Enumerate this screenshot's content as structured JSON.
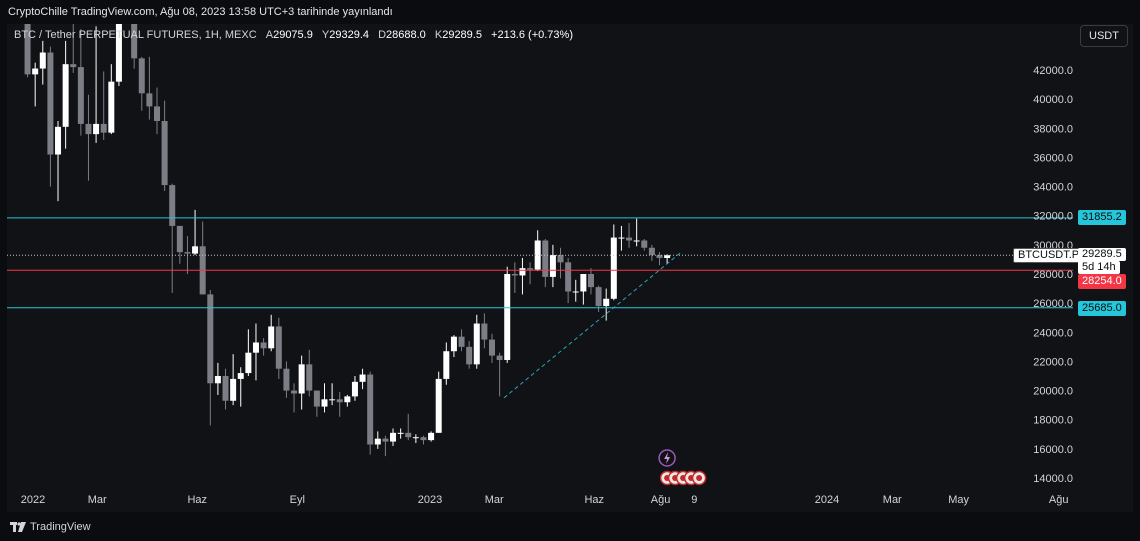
{
  "header": {
    "published": "CryptoChille TradingView.com, Ağu 08, 2023 13:58 UTC+3 tarihinde yayınlandı"
  },
  "legend": {
    "symbol": "BTC / Tether PERPETUAL FUTURES, 1H, MEXC",
    "open_label": "A",
    "open": "29075.9",
    "high_label": "Y",
    "high": "29329.4",
    "low_label": "D",
    "low": "28688.0",
    "close_label": "K",
    "close": "29289.5",
    "change": "+213.6 (+0.73%)"
  },
  "currency_button": "USDT",
  "footer": {
    "brand": "TradingView"
  },
  "price_tags": {
    "resistance": "31855.2",
    "symbol_label": "BTCUSDT.P",
    "current": "29289.5",
    "countdown": "5d 14h",
    "red_level": "28254.0",
    "support": "25685.0"
  },
  "colors": {
    "background": "#0b0c10",
    "panel": "#111216",
    "up_candle": "#ffffff",
    "down_candle": "#7c7e85",
    "cyan_line": "#26c6da",
    "red_line": "#f23645",
    "trend_line": "#2aa3b8"
  },
  "chart_data": {
    "type": "candlestick",
    "interval": "weekly (displayed)",
    "ylim": [
      13000,
      44000
    ],
    "y_ticks": [
      "42000.0",
      "40000.0",
      "38000.0",
      "36000.0",
      "34000.0",
      "32000.0",
      "30000.0",
      "28000.0",
      "26000.0",
      "24000.0",
      "22000.0",
      "20000.0",
      "18000.0",
      "16000.0",
      "14000.0"
    ],
    "x_labels": [
      "2022",
      "Mar",
      "Haz",
      "Eyl",
      "2023",
      "Mar",
      "Haz",
      "Ağu",
      "9",
      "2024",
      "Mar",
      "May",
      "Ağu"
    ],
    "grid": false,
    "horizontal_levels": [
      {
        "name": "resistance",
        "value": 31855.2
      },
      {
        "name": "red_level",
        "value": 28254.0
      },
      {
        "name": "support",
        "value": 25685.0
      },
      {
        "name": "current_price",
        "value": 29289.5
      }
    ],
    "trendline": {
      "from": {
        "date": "2023-03-10",
        "price": 19500
      },
      "to": {
        "date": "2023-08-20",
        "price": 29500
      }
    },
    "candles": [
      {
        "d": "2021-12-27",
        "o": 47500,
        "h": 48500,
        "l": 41500,
        "c": 41700
      },
      {
        "d": "2022-01-03",
        "o": 41700,
        "h": 42500,
        "l": 39500,
        "c": 42100
      },
      {
        "d": "2022-01-10",
        "o": 42100,
        "h": 44000,
        "l": 41000,
        "c": 43200
      },
      {
        "d": "2022-01-17",
        "o": 43200,
        "h": 43600,
        "l": 34000,
        "c": 36200
      },
      {
        "d": "2022-01-24",
        "o": 36200,
        "h": 38500,
        "l": 33000,
        "c": 38100
      },
      {
        "d": "2022-01-31",
        "o": 38100,
        "h": 44000,
        "l": 36600,
        "c": 42400
      },
      {
        "d": "2022-02-07",
        "o": 42400,
        "h": 45800,
        "l": 41800,
        "c": 42200
      },
      {
        "d": "2022-02-14",
        "o": 42200,
        "h": 44800,
        "l": 37500,
        "c": 38300
      },
      {
        "d": "2022-02-21",
        "o": 38300,
        "h": 40300,
        "l": 34400,
        "c": 37600
      },
      {
        "d": "2022-02-28",
        "o": 37600,
        "h": 45000,
        "l": 37000,
        "c": 38300
      },
      {
        "d": "2022-03-07",
        "o": 38300,
        "h": 41900,
        "l": 37200,
        "c": 37700
      },
      {
        "d": "2022-03-14",
        "o": 37700,
        "h": 42400,
        "l": 37600,
        "c": 41200
      },
      {
        "d": "2022-03-21",
        "o": 41200,
        "h": 48000,
        "l": 40900,
        "c": 46800
      },
      {
        "d": "2022-03-28",
        "o": 46800,
        "h": 48200,
        "l": 45200,
        "c": 46400
      },
      {
        "d": "2022-04-04",
        "o": 46400,
        "h": 47500,
        "l": 42100,
        "c": 42800
      },
      {
        "d": "2022-04-11",
        "o": 42800,
        "h": 42900,
        "l": 39200,
        "c": 40400
      },
      {
        "d": "2022-04-18",
        "o": 40400,
        "h": 42900,
        "l": 38600,
        "c": 39500
      },
      {
        "d": "2022-04-25",
        "o": 39500,
        "h": 40800,
        "l": 37600,
        "c": 38500
      },
      {
        "d": "2022-05-02",
        "o": 38500,
        "h": 39900,
        "l": 33700,
        "c": 34100
      },
      {
        "d": "2022-05-09",
        "o": 34100,
        "h": 34200,
        "l": 26700,
        "c": 31300
      },
      {
        "d": "2022-05-16",
        "o": 31300,
        "h": 31300,
        "l": 28700,
        "c": 29500
      },
      {
        "d": "2022-05-23",
        "o": 29500,
        "h": 30600,
        "l": 28000,
        "c": 29400
      },
      {
        "d": "2022-05-30",
        "o": 29400,
        "h": 32400,
        "l": 29300,
        "c": 29900
      },
      {
        "d": "2022-06-06",
        "o": 29900,
        "h": 31600,
        "l": 26600,
        "c": 26600
      },
      {
        "d": "2022-06-13",
        "o": 26600,
        "h": 26900,
        "l": 17600,
        "c": 20500
      },
      {
        "d": "2022-06-20",
        "o": 20500,
        "h": 21900,
        "l": 19700,
        "c": 21000
      },
      {
        "d": "2022-06-27",
        "o": 21000,
        "h": 21500,
        "l": 18700,
        "c": 19300
      },
      {
        "d": "2022-07-04",
        "o": 19300,
        "h": 22500,
        "l": 19000,
        "c": 20800
      },
      {
        "d": "2022-07-11",
        "o": 20800,
        "h": 21600,
        "l": 18900,
        "c": 21200
      },
      {
        "d": "2022-07-18",
        "o": 21200,
        "h": 24200,
        "l": 21000,
        "c": 22600
      },
      {
        "d": "2022-07-25",
        "o": 22600,
        "h": 24600,
        "l": 20700,
        "c": 23300
      },
      {
        "d": "2022-08-01",
        "o": 23300,
        "h": 23600,
        "l": 22400,
        "c": 22900
      },
      {
        "d": "2022-08-08",
        "o": 22900,
        "h": 25200,
        "l": 22700,
        "c": 24400
      },
      {
        "d": "2022-08-15",
        "o": 24400,
        "h": 25000,
        "l": 20800,
        "c": 21500
      },
      {
        "d": "2022-08-22",
        "o": 21500,
        "h": 22000,
        "l": 19500,
        "c": 20000
      },
      {
        "d": "2022-08-29",
        "o": 20000,
        "h": 20500,
        "l": 18500,
        "c": 19800
      },
      {
        "d": "2022-09-05",
        "o": 19800,
        "h": 22400,
        "l": 18700,
        "c": 21800
      },
      {
        "d": "2022-09-12",
        "o": 21800,
        "h": 22800,
        "l": 19600,
        "c": 20000
      },
      {
        "d": "2022-09-19",
        "o": 20000,
        "h": 20000,
        "l": 18200,
        "c": 18900
      },
      {
        "d": "2022-09-26",
        "o": 18900,
        "h": 20500,
        "l": 18500,
        "c": 19400
      },
      {
        "d": "2022-10-03",
        "o": 19400,
        "h": 20500,
        "l": 19000,
        "c": 19400
      },
      {
        "d": "2022-10-10",
        "o": 19400,
        "h": 19900,
        "l": 18200,
        "c": 19200
      },
      {
        "d": "2022-10-17",
        "o": 19200,
        "h": 19700,
        "l": 18900,
        "c": 19600
      },
      {
        "d": "2022-10-24",
        "o": 19600,
        "h": 21000,
        "l": 19300,
        "c": 20600
      },
      {
        "d": "2022-10-31",
        "o": 20600,
        "h": 21500,
        "l": 20100,
        "c": 21100
      },
      {
        "d": "2022-11-07",
        "o": 21100,
        "h": 21300,
        "l": 15600,
        "c": 16300
      },
      {
        "d": "2022-11-14",
        "o": 16300,
        "h": 17200,
        "l": 16000,
        "c": 16700
      },
      {
        "d": "2022-11-21",
        "o": 16700,
        "h": 16900,
        "l": 15500,
        "c": 16500
      },
      {
        "d": "2022-11-28",
        "o": 16500,
        "h": 17400,
        "l": 16200,
        "c": 17100
      },
      {
        "d": "2022-12-05",
        "o": 17100,
        "h": 17400,
        "l": 16700,
        "c": 17100
      },
      {
        "d": "2022-12-12",
        "o": 17100,
        "h": 18400,
        "l": 16600,
        "c": 16800
      },
      {
        "d": "2022-12-19",
        "o": 16800,
        "h": 17000,
        "l": 16400,
        "c": 16800
      },
      {
        "d": "2022-12-26",
        "o": 16800,
        "h": 16900,
        "l": 16300,
        "c": 16600
      },
      {
        "d": "2023-01-02",
        "o": 16600,
        "h": 17200,
        "l": 16500,
        "c": 17100
      },
      {
        "d": "2023-01-09",
        "o": 17100,
        "h": 21300,
        "l": 17100,
        "c": 20800
      },
      {
        "d": "2023-01-16",
        "o": 20800,
        "h": 23300,
        "l": 20400,
        "c": 22700
      },
      {
        "d": "2023-01-23",
        "o": 22700,
        "h": 23800,
        "l": 22300,
        "c": 23700
      },
      {
        "d": "2023-01-30",
        "o": 23700,
        "h": 24200,
        "l": 22700,
        "c": 23000
      },
      {
        "d": "2023-02-06",
        "o": 23000,
        "h": 23400,
        "l": 21500,
        "c": 21800
      },
      {
        "d": "2023-02-13",
        "o": 21800,
        "h": 25200,
        "l": 21500,
        "c": 24600
      },
      {
        "d": "2023-02-20",
        "o": 24600,
        "h": 25300,
        "l": 22900,
        "c": 23500
      },
      {
        "d": "2023-02-27",
        "o": 23500,
        "h": 23900,
        "l": 21900,
        "c": 22400
      },
      {
        "d": "2023-03-06",
        "o": 22400,
        "h": 22600,
        "l": 19600,
        "c": 22100
      },
      {
        "d": "2023-03-13",
        "o": 22100,
        "h": 28500,
        "l": 21900,
        "c": 28000
      },
      {
        "d": "2023-03-20",
        "o": 28000,
        "h": 28800,
        "l": 26700,
        "c": 27900
      },
      {
        "d": "2023-03-27",
        "o": 27900,
        "h": 29100,
        "l": 26600,
        "c": 28400
      },
      {
        "d": "2023-04-03",
        "o": 28400,
        "h": 28800,
        "l": 27300,
        "c": 28300
      },
      {
        "d": "2023-04-10",
        "o": 28300,
        "h": 31000,
        "l": 28200,
        "c": 30300
      },
      {
        "d": "2023-04-17",
        "o": 30300,
        "h": 30400,
        "l": 27100,
        "c": 27800
      },
      {
        "d": "2023-04-24",
        "o": 27800,
        "h": 30000,
        "l": 27100,
        "c": 29300
      },
      {
        "d": "2023-05-01",
        "o": 29300,
        "h": 29800,
        "l": 27700,
        "c": 28800
      },
      {
        "d": "2023-05-08",
        "o": 28800,
        "h": 29100,
        "l": 26000,
        "c": 26800
      },
      {
        "d": "2023-05-15",
        "o": 26800,
        "h": 27600,
        "l": 26100,
        "c": 26800
      },
      {
        "d": "2023-05-22",
        "o": 26800,
        "h": 28000,
        "l": 25900,
        "c": 28000
      },
      {
        "d": "2023-05-29",
        "o": 28000,
        "h": 28400,
        "l": 26600,
        "c": 27100
      },
      {
        "d": "2023-06-05",
        "o": 27100,
        "h": 27200,
        "l": 25400,
        "c": 25800
      },
      {
        "d": "2023-06-12",
        "o": 25800,
        "h": 27000,
        "l": 24800,
        "c": 26300
      },
      {
        "d": "2023-06-19",
        "o": 26300,
        "h": 31400,
        "l": 26200,
        "c": 30500
      },
      {
        "d": "2023-06-26",
        "o": 30500,
        "h": 31300,
        "l": 29600,
        "c": 30500
      },
      {
        "d": "2023-07-03",
        "o": 30500,
        "h": 31500,
        "l": 29800,
        "c": 30300
      },
      {
        "d": "2023-07-10",
        "o": 30300,
        "h": 31800,
        "l": 29900,
        "c": 30300
      },
      {
        "d": "2023-07-17",
        "o": 30300,
        "h": 30400,
        "l": 29600,
        "c": 29800
      },
      {
        "d": "2023-07-24",
        "o": 29800,
        "h": 30000,
        "l": 28900,
        "c": 29300
      },
      {
        "d": "2023-07-31",
        "o": 29300,
        "h": 29500,
        "l": 28600,
        "c": 29100
      },
      {
        "d": "2023-08-07",
        "o": 29100,
        "h": 29350,
        "l": 28688,
        "c": 29289.5
      }
    ]
  }
}
